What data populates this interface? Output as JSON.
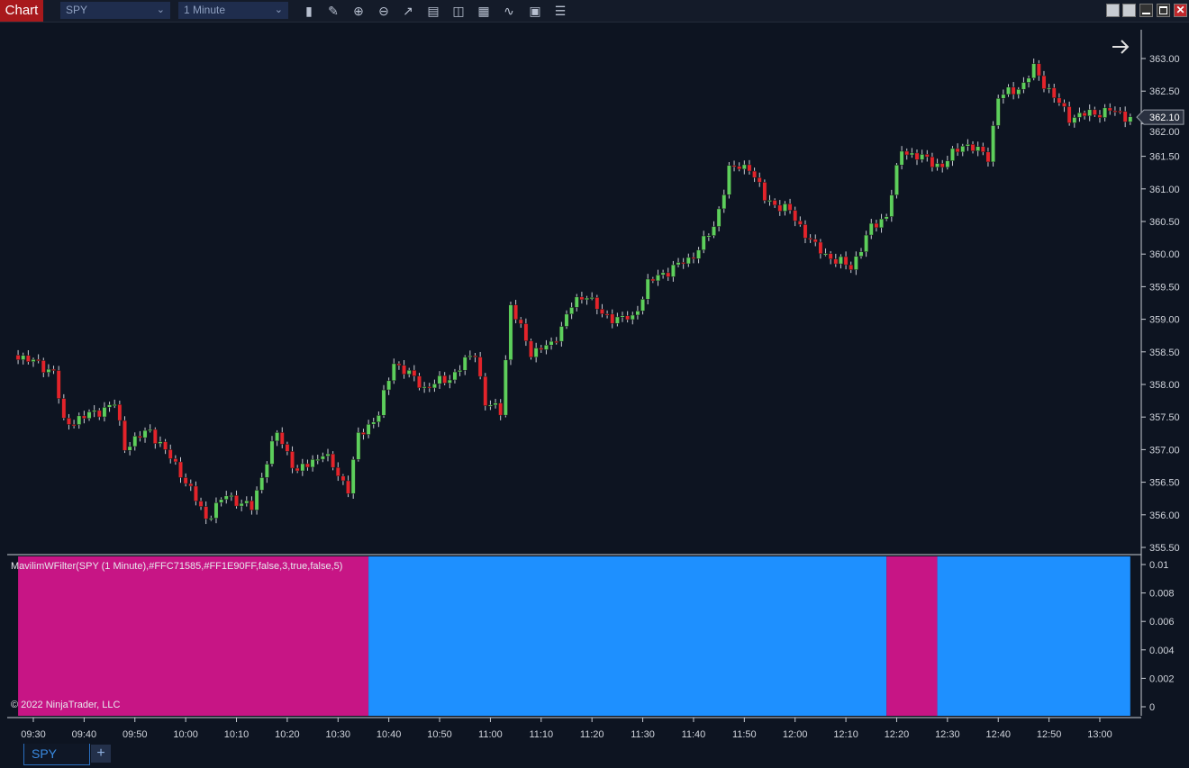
{
  "window": {
    "title": "Chart"
  },
  "toolbar": {
    "instrument": "SPY",
    "interval": "1 Minute",
    "tools": [
      "bar-type-icon",
      "pencil-icon",
      "zoom-in-icon",
      "zoom-out-icon",
      "pointer-icon",
      "data-box-icon",
      "properties-icon",
      "indicators-icon",
      "strategies-icon",
      "chart-trader-icon",
      "list-icon"
    ]
  },
  "window_buttons": [
    "tile-button",
    "tile-button-2",
    "minimize-button",
    "maximize-button",
    "close-button"
  ],
  "tabs": [
    {
      "label": "SPY",
      "active": true
    }
  ],
  "add_tab_label": "+",
  "colors": {
    "bg": "#0d1421",
    "up": "#5ccf5c",
    "down": "#e3232b",
    "magenta": "#C71585",
    "blue": "#1E90FF"
  },
  "chart_data": {
    "type": "candlestick",
    "price_axis": {
      "ticks": [
        "363.00",
        "362.50",
        "362.00",
        "361.50",
        "361.00",
        "360.50",
        "360.00",
        "359.50",
        "359.00",
        "358.50",
        "358.00",
        "357.50",
        "357.00",
        "356.50",
        "356.00",
        "355.50"
      ],
      "range": [
        355.5,
        363.0
      ]
    },
    "last_price": "362.10",
    "time_axis": {
      "ticks": [
        "09:30",
        "09:40",
        "09:50",
        "10:00",
        "10:10",
        "10:20",
        "10:30",
        "10:40",
        "10:50",
        "11:00",
        "11:10",
        "11:20",
        "11:30",
        "11:40",
        "11:50",
        "12:00",
        "12:10",
        "12:20",
        "12:30",
        "12:40",
        "12:50",
        "13:00"
      ]
    },
    "approx_close_path": [
      [
        "09:27",
        358.45
      ],
      [
        "09:34",
        358.2
      ],
      [
        "09:36",
        357.4
      ],
      [
        "09:40",
        357.5
      ],
      [
        "09:46",
        357.7
      ],
      [
        "09:48",
        357.05
      ],
      [
        "09:53",
        357.3
      ],
      [
        "09:59",
        356.65
      ],
      [
        "10:04",
        355.95
      ],
      [
        "10:08",
        356.3
      ],
      [
        "10:13",
        356.1
      ],
      [
        "10:16",
        356.85
      ],
      [
        "10:18",
        357.25
      ],
      [
        "10:22",
        356.65
      ],
      [
        "10:27",
        356.95
      ],
      [
        "10:32",
        356.4
      ],
      [
        "10:34",
        357.2
      ],
      [
        "10:38",
        357.55
      ],
      [
        "10:41",
        358.35
      ],
      [
        "10:47",
        357.95
      ],
      [
        "10:52",
        358.1
      ],
      [
        "10:57",
        358.5
      ],
      [
        "10:59",
        357.7
      ],
      [
        "11:02",
        357.6
      ],
      [
        "11:04",
        359.2
      ],
      [
        "11:08",
        358.5
      ],
      [
        "11:12",
        358.6
      ],
      [
        "11:16",
        359.2
      ],
      [
        "11:19",
        359.4
      ],
      [
        "11:22",
        359.05
      ],
      [
        "11:28",
        359.0
      ],
      [
        "11:31",
        359.55
      ],
      [
        "11:36",
        359.8
      ],
      [
        "11:39",
        359.9
      ],
      [
        "11:44",
        360.4
      ],
      [
        "11:47",
        361.3
      ],
      [
        "11:51",
        361.35
      ],
      [
        "11:54",
        360.85
      ],
      [
        "11:59",
        360.65
      ],
      [
        "12:04",
        360.1
      ],
      [
        "12:08",
        359.9
      ],
      [
        "12:11",
        359.8
      ],
      [
        "12:15",
        360.4
      ],
      [
        "12:18",
        360.6
      ],
      [
        "12:21",
        361.6
      ],
      [
        "12:24",
        361.5
      ],
      [
        "12:29",
        361.35
      ],
      [
        "12:33",
        361.7
      ],
      [
        "12:38",
        361.5
      ],
      [
        "12:40",
        362.4
      ],
      [
        "12:45",
        362.6
      ],
      [
        "12:47",
        362.85
      ],
      [
        "12:51",
        362.4
      ],
      [
        "12:54",
        362.1
      ],
      [
        "13:02",
        362.2
      ],
      [
        "13:06",
        362.1
      ]
    ],
    "indicator": {
      "label": "MavilimWFilter(SPY (1 Minute),#FFC71585,#FF1E90FF,false,3,true,false,5)",
      "axis_ticks": [
        "0.01",
        "0.008",
        "0.006",
        "0.004",
        "0.002",
        "0"
      ],
      "range": [
        0,
        0.01
      ],
      "segments": [
        {
          "from": "09:27",
          "to": "10:36",
          "color": "#C71585"
        },
        {
          "from": "10:36",
          "to": "12:18",
          "color": "#1E90FF"
        },
        {
          "from": "12:18",
          "to": "12:28",
          "color": "#C71585"
        },
        {
          "from": "12:28",
          "to": "13:06",
          "color": "#1E90FF"
        }
      ]
    }
  },
  "copyright": "© 2022 NinjaTrader, LLC"
}
